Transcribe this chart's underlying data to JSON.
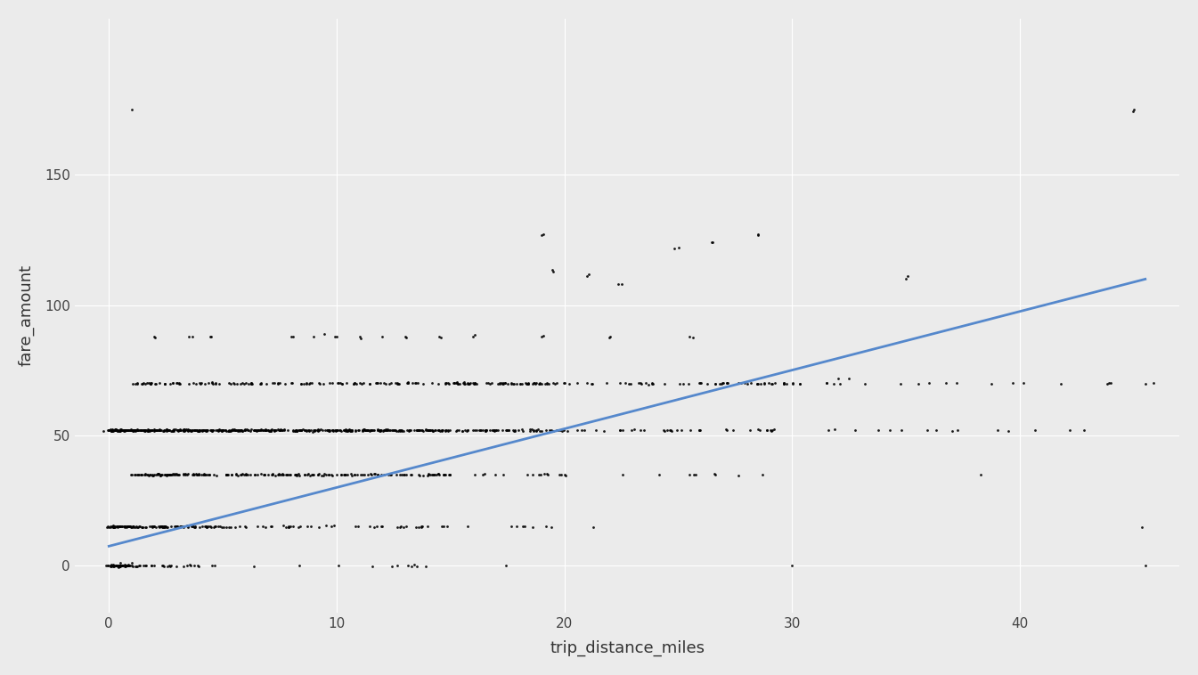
{
  "xlabel": "trip_distance_miles",
  "ylabel": "fare_amount",
  "background_color": "#EBEBEB",
  "grid_color": "#FFFFFF",
  "scatter_color": "black",
  "line_color": "#5588CC",
  "point_size": 4,
  "point_alpha": 0.9,
  "xlim": [
    -1.5,
    47
  ],
  "ylim": [
    -18,
    210
  ],
  "xticks": [
    0,
    10,
    20,
    30,
    40
  ],
  "yticks": [
    0,
    50,
    100,
    150
  ],
  "reg_x0": 0,
  "reg_y0": 7.5,
  "reg_x1": 45.5,
  "reg_y1": 110.0,
  "fare_levels": [
    0,
    15,
    35,
    52,
    70
  ],
  "outlier_points": [
    [
      19.0,
      127
    ],
    [
      19.5,
      113
    ],
    [
      21.0,
      111
    ],
    [
      22.5,
      108
    ],
    [
      25.0,
      122
    ],
    [
      26.5,
      124
    ],
    [
      28.5,
      127
    ],
    [
      35.0,
      110
    ],
    [
      45.0,
      175
    ],
    [
      2.0,
      88
    ],
    [
      3.5,
      88
    ],
    [
      4.5,
      88
    ],
    [
      8.0,
      88
    ],
    [
      9.5,
      88
    ],
    [
      10.0,
      88
    ],
    [
      11.0,
      88
    ],
    [
      13.0,
      88
    ],
    [
      14.5,
      88
    ],
    [
      16.0,
      88
    ],
    [
      19.0,
      88
    ],
    [
      22.0,
      88
    ],
    [
      25.5,
      88
    ]
  ]
}
